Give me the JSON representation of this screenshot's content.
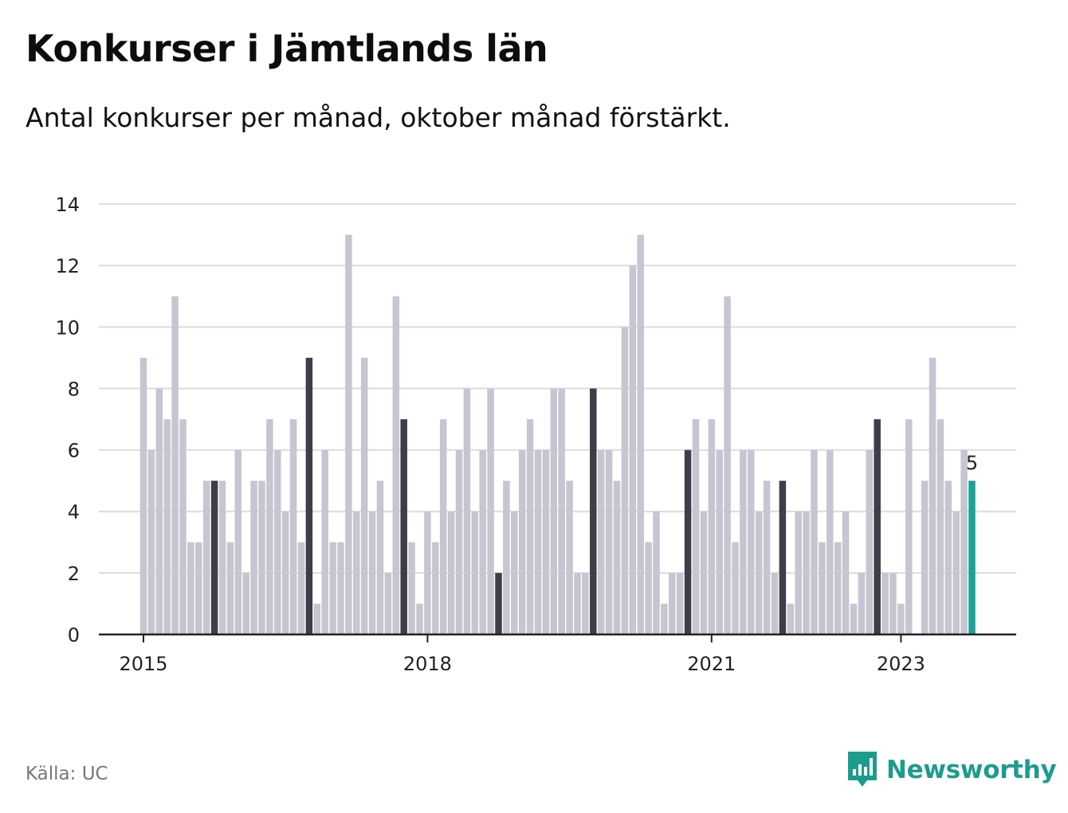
{
  "title": "Konkurser i Jämtlands län",
  "subtitle": "Antal konkurser per månad, oktober månad förstärkt.",
  "source": "Källa: UC",
  "brand": "Newsworthy",
  "colors": {
    "bar": "#c6c6d2",
    "bar_highlight": "#3e3e4b",
    "bar_latest": "#1aa393",
    "grid": "#dcdcdc",
    "axis": "#222222",
    "brand": "#1c9c8d"
  },
  "chart_data": {
    "type": "bar",
    "title": "Konkurser i Jämtlands län",
    "subtitle": "Antal konkurser per månad, oktober månad förstärkt.",
    "xlabel": "",
    "ylabel": "",
    "ylim": [
      0,
      14
    ],
    "yticks": [
      0,
      2,
      4,
      6,
      8,
      10,
      12,
      14
    ],
    "xticks": [
      "2015",
      "2018",
      "2021",
      "2023"
    ],
    "grid": true,
    "start": "2015-01",
    "highlight_month": "oktober",
    "values": [
      9,
      6,
      8,
      7,
      11,
      7,
      3,
      3,
      5,
      5,
      5,
      3,
      6,
      2,
      5,
      5,
      7,
      6,
      4,
      7,
      3,
      9,
      1,
      6,
      3,
      3,
      13,
      4,
      9,
      4,
      5,
      2,
      11,
      7,
      3,
      1,
      4,
      3,
      7,
      4,
      6,
      8,
      4,
      6,
      8,
      2,
      5,
      4,
      6,
      7,
      6,
      6,
      8,
      8,
      5,
      2,
      2,
      8,
      6,
      6,
      5,
      10,
      12,
      13,
      3,
      4,
      1,
      2,
      2,
      6,
      7,
      4,
      7,
      6,
      11,
      3,
      6,
      6,
      4,
      5,
      2,
      5,
      1,
      4,
      4,
      6,
      3,
      6,
      3,
      4,
      1,
      2,
      6,
      7,
      2,
      2,
      1,
      7,
      0,
      5,
      9,
      7,
      5,
      4,
      6,
      5
    ],
    "last_value_label": "5"
  }
}
